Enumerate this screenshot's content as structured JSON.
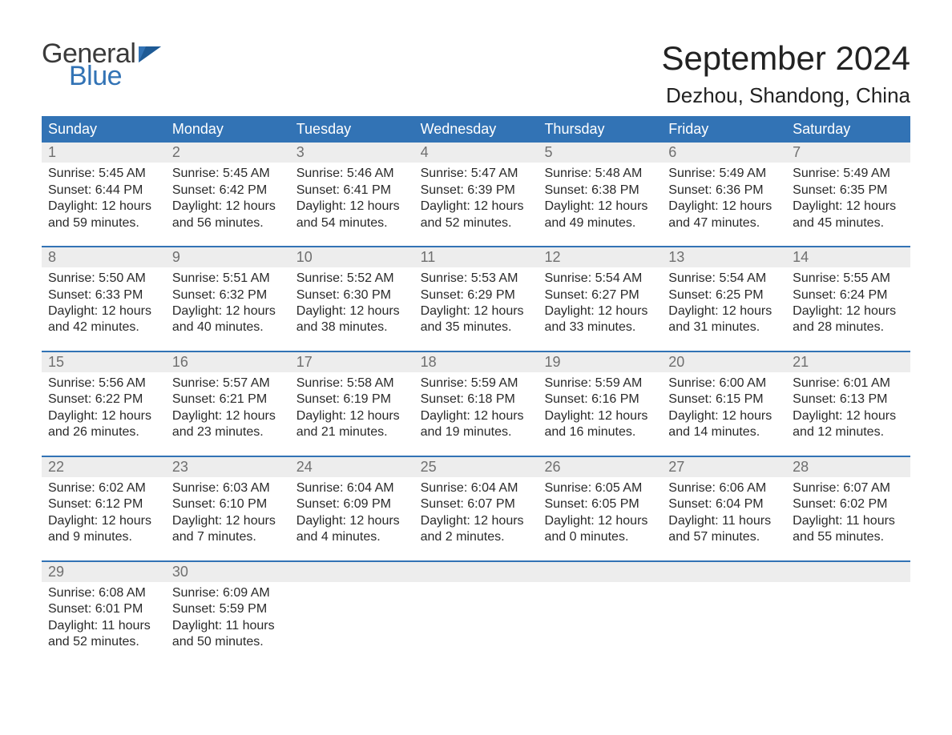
{
  "logo": {
    "text1": "General",
    "text2": "Blue",
    "flag_color": "#3273b5"
  },
  "header": {
    "month_title": "September 2024",
    "location": "Dezhou, Shandong, China"
  },
  "colors": {
    "header_bg": "#3273b5",
    "header_text": "#ffffff",
    "daynum_bg": "#ededed",
    "daynum_text": "#6f6f6f",
    "body_text": "#2a2a2a",
    "page_bg": "#ffffff",
    "week_divider": "#3273b5"
  },
  "typography": {
    "month_title_fontsize": 42,
    "location_fontsize": 26,
    "weekday_fontsize": 18,
    "daynum_fontsize": 18,
    "body_fontsize": 16
  },
  "calendar": {
    "type": "table",
    "weekdays": [
      "Sunday",
      "Monday",
      "Tuesday",
      "Wednesday",
      "Thursday",
      "Friday",
      "Saturday"
    ],
    "weeks": [
      [
        {
          "n": "1",
          "sunrise": "Sunrise: 5:45 AM",
          "sunset": "Sunset: 6:44 PM",
          "dl1": "Daylight: 12 hours",
          "dl2": "and 59 minutes."
        },
        {
          "n": "2",
          "sunrise": "Sunrise: 5:45 AM",
          "sunset": "Sunset: 6:42 PM",
          "dl1": "Daylight: 12 hours",
          "dl2": "and 56 minutes."
        },
        {
          "n": "3",
          "sunrise": "Sunrise: 5:46 AM",
          "sunset": "Sunset: 6:41 PM",
          "dl1": "Daylight: 12 hours",
          "dl2": "and 54 minutes."
        },
        {
          "n": "4",
          "sunrise": "Sunrise: 5:47 AM",
          "sunset": "Sunset: 6:39 PM",
          "dl1": "Daylight: 12 hours",
          "dl2": "and 52 minutes."
        },
        {
          "n": "5",
          "sunrise": "Sunrise: 5:48 AM",
          "sunset": "Sunset: 6:38 PM",
          "dl1": "Daylight: 12 hours",
          "dl2": "and 49 minutes."
        },
        {
          "n": "6",
          "sunrise": "Sunrise: 5:49 AM",
          "sunset": "Sunset: 6:36 PM",
          "dl1": "Daylight: 12 hours",
          "dl2": "and 47 minutes."
        },
        {
          "n": "7",
          "sunrise": "Sunrise: 5:49 AM",
          "sunset": "Sunset: 6:35 PM",
          "dl1": "Daylight: 12 hours",
          "dl2": "and 45 minutes."
        }
      ],
      [
        {
          "n": "8",
          "sunrise": "Sunrise: 5:50 AM",
          "sunset": "Sunset: 6:33 PM",
          "dl1": "Daylight: 12 hours",
          "dl2": "and 42 minutes."
        },
        {
          "n": "9",
          "sunrise": "Sunrise: 5:51 AM",
          "sunset": "Sunset: 6:32 PM",
          "dl1": "Daylight: 12 hours",
          "dl2": "and 40 minutes."
        },
        {
          "n": "10",
          "sunrise": "Sunrise: 5:52 AM",
          "sunset": "Sunset: 6:30 PM",
          "dl1": "Daylight: 12 hours",
          "dl2": "and 38 minutes."
        },
        {
          "n": "11",
          "sunrise": "Sunrise: 5:53 AM",
          "sunset": "Sunset: 6:29 PM",
          "dl1": "Daylight: 12 hours",
          "dl2": "and 35 minutes."
        },
        {
          "n": "12",
          "sunrise": "Sunrise: 5:54 AM",
          "sunset": "Sunset: 6:27 PM",
          "dl1": "Daylight: 12 hours",
          "dl2": "and 33 minutes."
        },
        {
          "n": "13",
          "sunrise": "Sunrise: 5:54 AM",
          "sunset": "Sunset: 6:25 PM",
          "dl1": "Daylight: 12 hours",
          "dl2": "and 31 minutes."
        },
        {
          "n": "14",
          "sunrise": "Sunrise: 5:55 AM",
          "sunset": "Sunset: 6:24 PM",
          "dl1": "Daylight: 12 hours",
          "dl2": "and 28 minutes."
        }
      ],
      [
        {
          "n": "15",
          "sunrise": "Sunrise: 5:56 AM",
          "sunset": "Sunset: 6:22 PM",
          "dl1": "Daylight: 12 hours",
          "dl2": "and 26 minutes."
        },
        {
          "n": "16",
          "sunrise": "Sunrise: 5:57 AM",
          "sunset": "Sunset: 6:21 PM",
          "dl1": "Daylight: 12 hours",
          "dl2": "and 23 minutes."
        },
        {
          "n": "17",
          "sunrise": "Sunrise: 5:58 AM",
          "sunset": "Sunset: 6:19 PM",
          "dl1": "Daylight: 12 hours",
          "dl2": "and 21 minutes."
        },
        {
          "n": "18",
          "sunrise": "Sunrise: 5:59 AM",
          "sunset": "Sunset: 6:18 PM",
          "dl1": "Daylight: 12 hours",
          "dl2": "and 19 minutes."
        },
        {
          "n": "19",
          "sunrise": "Sunrise: 5:59 AM",
          "sunset": "Sunset: 6:16 PM",
          "dl1": "Daylight: 12 hours",
          "dl2": "and 16 minutes."
        },
        {
          "n": "20",
          "sunrise": "Sunrise: 6:00 AM",
          "sunset": "Sunset: 6:15 PM",
          "dl1": "Daylight: 12 hours",
          "dl2": "and 14 minutes."
        },
        {
          "n": "21",
          "sunrise": "Sunrise: 6:01 AM",
          "sunset": "Sunset: 6:13 PM",
          "dl1": "Daylight: 12 hours",
          "dl2": "and 12 minutes."
        }
      ],
      [
        {
          "n": "22",
          "sunrise": "Sunrise: 6:02 AM",
          "sunset": "Sunset: 6:12 PM",
          "dl1": "Daylight: 12 hours",
          "dl2": "and 9 minutes."
        },
        {
          "n": "23",
          "sunrise": "Sunrise: 6:03 AM",
          "sunset": "Sunset: 6:10 PM",
          "dl1": "Daylight: 12 hours",
          "dl2": "and 7 minutes."
        },
        {
          "n": "24",
          "sunrise": "Sunrise: 6:04 AM",
          "sunset": "Sunset: 6:09 PM",
          "dl1": "Daylight: 12 hours",
          "dl2": "and 4 minutes."
        },
        {
          "n": "25",
          "sunrise": "Sunrise: 6:04 AM",
          "sunset": "Sunset: 6:07 PM",
          "dl1": "Daylight: 12 hours",
          "dl2": "and 2 minutes."
        },
        {
          "n": "26",
          "sunrise": "Sunrise: 6:05 AM",
          "sunset": "Sunset: 6:05 PM",
          "dl1": "Daylight: 12 hours",
          "dl2": "and 0 minutes."
        },
        {
          "n": "27",
          "sunrise": "Sunrise: 6:06 AM",
          "sunset": "Sunset: 6:04 PM",
          "dl1": "Daylight: 11 hours",
          "dl2": "and 57 minutes."
        },
        {
          "n": "28",
          "sunrise": "Sunrise: 6:07 AM",
          "sunset": "Sunset: 6:02 PM",
          "dl1": "Daylight: 11 hours",
          "dl2": "and 55 minutes."
        }
      ],
      [
        {
          "n": "29",
          "sunrise": "Sunrise: 6:08 AM",
          "sunset": "Sunset: 6:01 PM",
          "dl1": "Daylight: 11 hours",
          "dl2": "and 52 minutes."
        },
        {
          "n": "30",
          "sunrise": "Sunrise: 6:09 AM",
          "sunset": "Sunset: 5:59 PM",
          "dl1": "Daylight: 11 hours",
          "dl2": "and 50 minutes."
        },
        {
          "n": "",
          "empty": true
        },
        {
          "n": "",
          "empty": true
        },
        {
          "n": "",
          "empty": true
        },
        {
          "n": "",
          "empty": true
        },
        {
          "n": "",
          "empty": true
        }
      ]
    ]
  }
}
